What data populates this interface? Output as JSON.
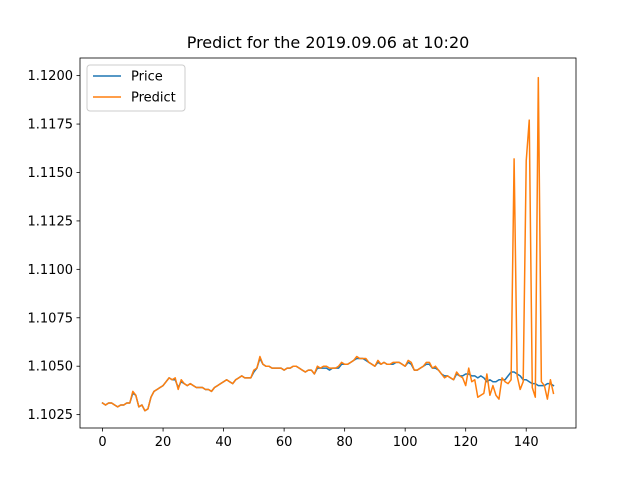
{
  "chart_data": {
    "type": "line",
    "title": "Predict for the 2019.09.06 at 10:20",
    "xlabel": "",
    "ylabel": "",
    "xlim": [
      -7.45,
      156.45
    ],
    "ylim": [
      1.10181,
      1.12091
    ],
    "xticks": [
      0,
      20,
      40,
      60,
      80,
      100,
      120,
      140
    ],
    "xtick_labels": [
      "0",
      "20",
      "40",
      "60",
      "80",
      "100",
      "120",
      "140"
    ],
    "yticks": [
      1.1025,
      1.105,
      1.1075,
      1.11,
      1.1125,
      1.115,
      1.1175,
      1.12
    ],
    "ytick_labels": [
      "1.1025",
      "1.1050",
      "1.1075",
      "1.1100",
      "1.1125",
      "1.1150",
      "1.1175",
      "1.1200"
    ],
    "grid": false,
    "legend_position": "top-left",
    "x": [
      0,
      1,
      2,
      3,
      4,
      5,
      6,
      7,
      8,
      9,
      10,
      11,
      12,
      13,
      14,
      15,
      16,
      17,
      18,
      19,
      20,
      21,
      22,
      23,
      24,
      25,
      26,
      27,
      28,
      29,
      30,
      31,
      32,
      33,
      34,
      35,
      36,
      37,
      38,
      39,
      40,
      41,
      42,
      43,
      44,
      45,
      46,
      47,
      48,
      49,
      50,
      51,
      52,
      53,
      54,
      55,
      56,
      57,
      58,
      59,
      60,
      61,
      62,
      63,
      64,
      65,
      66,
      67,
      68,
      69,
      70,
      71,
      72,
      73,
      74,
      75,
      76,
      77,
      78,
      79,
      80,
      81,
      82,
      83,
      84,
      85,
      86,
      87,
      88,
      89,
      90,
      91,
      92,
      93,
      94,
      95,
      96,
      97,
      98,
      99,
      100,
      101,
      102,
      103,
      104,
      105,
      106,
      107,
      108,
      109,
      110,
      111,
      112,
      113,
      114,
      115,
      116,
      117,
      118,
      119,
      120,
      121,
      122,
      123,
      124,
      125,
      126,
      127,
      128,
      129,
      130,
      131,
      132,
      133,
      134,
      135,
      136,
      137,
      138,
      139,
      140,
      141,
      142,
      143,
      144,
      145,
      146,
      147,
      148,
      149
    ],
    "series": [
      {
        "name": "Price",
        "color": "#1f77b4",
        "values": [
          1.1031,
          1.103,
          1.1031,
          1.1031,
          1.103,
          1.1029,
          1.103,
          1.103,
          1.1031,
          1.1031,
          1.1036,
          1.1035,
          1.1029,
          1.103,
          1.1027,
          1.1028,
          1.1034,
          1.1037,
          1.1038,
          1.1039,
          1.104,
          1.1042,
          1.1044,
          1.1043,
          1.1043,
          1.1039,
          1.1042,
          1.1041,
          1.104,
          1.1041,
          1.104,
          1.1039,
          1.1039,
          1.1039,
          1.1038,
          1.1038,
          1.1037,
          1.1039,
          1.104,
          1.1041,
          1.1042,
          1.1043,
          1.1042,
          1.1041,
          1.1043,
          1.1044,
          1.1045,
          1.1044,
          1.1044,
          1.1044,
          1.1047,
          1.1049,
          1.1054,
          1.1051,
          1.105,
          1.105,
          1.1049,
          1.1049,
          1.1049,
          1.1049,
          1.1048,
          1.1049,
          1.1049,
          1.105,
          1.105,
          1.1049,
          1.1048,
          1.1047,
          1.1048,
          1.1048,
          1.1046,
          1.1049,
          1.1049,
          1.1049,
          1.1049,
          1.1048,
          1.1049,
          1.1049,
          1.1049,
          1.1051,
          1.1051,
          1.1051,
          1.1052,
          1.1053,
          1.1054,
          1.1054,
          1.1054,
          1.1053,
          1.1052,
          1.1051,
          1.105,
          1.1052,
          1.1051,
          1.1052,
          1.1051,
          1.1051,
          1.1051,
          1.1052,
          1.1052,
          1.1051,
          1.105,
          1.1052,
          1.1051,
          1.1048,
          1.1048,
          1.1049,
          1.105,
          1.1051,
          1.1051,
          1.1049,
          1.1049,
          1.1048,
          1.1046,
          1.1045,
          1.1045,
          1.1044,
          1.1043,
          1.1046,
          1.1045,
          1.1045,
          1.1046,
          1.1046,
          1.1045,
          1.1045,
          1.1044,
          1.1045,
          1.1044,
          1.1042,
          1.1043,
          1.1042,
          1.1042,
          1.1043,
          1.1043,
          1.1043,
          1.1045,
          1.1047,
          1.1047,
          1.1046,
          1.1045,
          1.1043,
          1.1043,
          1.1042,
          1.1041,
          1.1041,
          1.104,
          1.104,
          1.104,
          1.1041,
          1.1041,
          1.104
        ]
      },
      {
        "name": "Predict",
        "color": "#ff7f0e",
        "values": [
          1.1031,
          1.103,
          1.1031,
          1.1031,
          1.103,
          1.1029,
          1.103,
          1.103,
          1.1031,
          1.1031,
          1.1037,
          1.1035,
          1.1029,
          1.103,
          1.1027,
          1.1028,
          1.1034,
          1.1037,
          1.1038,
          1.1039,
          1.104,
          1.1042,
          1.1044,
          1.1043,
          1.1044,
          1.1038,
          1.1043,
          1.1041,
          1.104,
          1.1041,
          1.104,
          1.1039,
          1.1039,
          1.1039,
          1.1038,
          1.1038,
          1.1037,
          1.1039,
          1.104,
          1.1041,
          1.1042,
          1.1043,
          1.1042,
          1.1041,
          1.1043,
          1.1044,
          1.1045,
          1.1044,
          1.1044,
          1.1044,
          1.1048,
          1.1049,
          1.1055,
          1.1051,
          1.105,
          1.105,
          1.1049,
          1.1049,
          1.1049,
          1.1049,
          1.1048,
          1.1049,
          1.1049,
          1.105,
          1.105,
          1.1049,
          1.1048,
          1.1047,
          1.1048,
          1.1048,
          1.1046,
          1.105,
          1.1049,
          1.105,
          1.105,
          1.1049,
          1.1049,
          1.1049,
          1.105,
          1.1052,
          1.1051,
          1.1051,
          1.1052,
          1.1053,
          1.1055,
          1.1054,
          1.1054,
          1.1054,
          1.1052,
          1.1051,
          1.105,
          1.1053,
          1.1051,
          1.1052,
          1.1051,
          1.1051,
          1.1052,
          1.1052,
          1.1052,
          1.1051,
          1.105,
          1.1053,
          1.1052,
          1.1048,
          1.1048,
          1.1049,
          1.105,
          1.1052,
          1.1052,
          1.1049,
          1.105,
          1.1048,
          1.1046,
          1.1044,
          1.1045,
          1.1044,
          1.1043,
          1.1047,
          1.1045,
          1.1044,
          1.104,
          1.1049,
          1.1042,
          1.1043,
          1.1034,
          1.1035,
          1.1036,
          1.1046,
          1.1035,
          1.104,
          1.1035,
          1.1033,
          1.1044,
          1.1042,
          1.1041,
          1.1043,
          1.1157,
          1.1045,
          1.1038,
          1.1042,
          1.1156,
          1.1177,
          1.1039,
          1.1034,
          1.1199,
          1.1042,
          1.104,
          1.1033,
          1.1043,
          1.1036
        ]
      }
    ]
  }
}
